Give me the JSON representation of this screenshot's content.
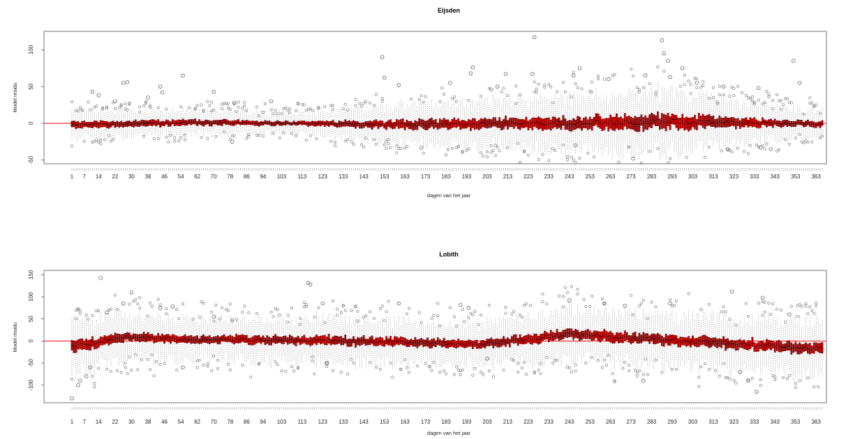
{
  "chart_data": [
    {
      "type": "box",
      "title": "Eijsden",
      "xlabel": "dagen van het jaar",
      "ylabel": "Model residu",
      "xlim": [
        1,
        366
      ],
      "ylim": [
        -55,
        125
      ],
      "yticks": [
        -50,
        0,
        50,
        100
      ],
      "xticks": [
        1,
        7,
        14,
        22,
        30,
        38,
        46,
        54,
        62,
        70,
        78,
        86,
        94,
        103,
        113,
        123,
        133,
        143,
        153,
        163,
        173,
        183,
        193,
        203,
        213,
        223,
        233,
        243,
        253,
        263,
        273,
        283,
        293,
        303,
        313,
        323,
        333,
        343,
        353,
        363
      ],
      "reference_line": {
        "y": 0,
        "color": "#ff0000"
      },
      "box_fill": "#cc0000",
      "spread_profile": [
        {
          "day": 1,
          "iqr": 8,
          "whisker": 15,
          "median": -2
        },
        {
          "day": 60,
          "iqr": 7,
          "whisker": 14,
          "median": 1
        },
        {
          "day": 110,
          "iqr": 5,
          "whisker": 12,
          "median": 0
        },
        {
          "day": 160,
          "iqr": 10,
          "whisker": 22,
          "median": -2
        },
        {
          "day": 230,
          "iqr": 14,
          "whisker": 30,
          "median": 0
        },
        {
          "day": 290,
          "iqr": 18,
          "whisker": 35,
          "median": 2
        },
        {
          "day": 340,
          "iqr": 9,
          "whisker": 20,
          "median": 0
        },
        {
          "day": 366,
          "iqr": 7,
          "whisker": 15,
          "median": -1
        }
      ],
      "outliers": [
        {
          "day": 11,
          "y": 43
        },
        {
          "day": 14,
          "y": 38
        },
        {
          "day": 22,
          "y": 30
        },
        {
          "day": 26,
          "y": 55
        },
        {
          "day": 28,
          "y": 56
        },
        {
          "day": 38,
          "y": 35
        },
        {
          "day": 44,
          "y": 50
        },
        {
          "day": 45,
          "y": 42
        },
        {
          "day": 55,
          "y": 65
        },
        {
          "day": 70,
          "y": 43
        },
        {
          "day": 80,
          "y": 28
        },
        {
          "day": 98,
          "y": 30
        },
        {
          "day": 152,
          "y": 90
        },
        {
          "day": 153,
          "y": 62
        },
        {
          "day": 160,
          "y": 52
        },
        {
          "day": 185,
          "y": 55
        },
        {
          "day": 195,
          "y": 68
        },
        {
          "day": 196,
          "y": 76
        },
        {
          "day": 205,
          "y": 46
        },
        {
          "day": 208,
          "y": 50
        },
        {
          "day": 212,
          "y": 67
        },
        {
          "day": 226,
          "y": 117
        },
        {
          "day": 225,
          "y": 67
        },
        {
          "day": 245,
          "y": 65
        },
        {
          "day": 248,
          "y": 75
        },
        {
          "day": 262,
          "y": 60
        },
        {
          "day": 280,
          "y": 65
        },
        {
          "day": 288,
          "y": 113
        },
        {
          "day": 289,
          "y": 95
        },
        {
          "day": 291,
          "y": 85
        },
        {
          "day": 292,
          "y": 63
        },
        {
          "day": 298,
          "y": 75
        },
        {
          "day": 305,
          "y": 55
        },
        {
          "day": 318,
          "y": 50
        },
        {
          "day": 335,
          "y": 48
        },
        {
          "day": 352,
          "y": 85
        },
        {
          "day": 355,
          "y": 55
        },
        {
          "day": 274,
          "y": -48
        },
        {
          "day": 171,
          "y": -33
        },
        {
          "day": 320,
          "y": -35
        },
        {
          "day": 336,
          "y": -33
        },
        {
          "day": 341,
          "y": -35
        },
        {
          "day": 246,
          "y": -30
        },
        {
          "day": 79,
          "y": -25
        }
      ]
    },
    {
      "type": "box",
      "title": "Lobith",
      "xlabel": "dagen van het jaar",
      "ylabel": "Model residu",
      "xlim": [
        1,
        366
      ],
      "ylim": [
        -140,
        160
      ],
      "yticks": [
        -100,
        -50,
        0,
        50,
        100,
        150
      ],
      "xticks": [
        1,
        7,
        14,
        22,
        30,
        38,
        46,
        54,
        62,
        70,
        78,
        86,
        94,
        103,
        113,
        123,
        133,
        143,
        153,
        163,
        173,
        183,
        193,
        203,
        213,
        223,
        233,
        243,
        253,
        263,
        273,
        283,
        293,
        303,
        313,
        323,
        333,
        343,
        353,
        363
      ],
      "reference_line": {
        "y": 0,
        "color": "#ff0000"
      },
      "box_fill": "#cc0000",
      "spread_profile": [
        {
          "day": 1,
          "iqr": 25,
          "whisker": 55,
          "median": -12
        },
        {
          "day": 10,
          "iqr": 20,
          "whisker": 50,
          "median": -5
        },
        {
          "day": 25,
          "iqr": 18,
          "whisker": 48,
          "median": 10
        },
        {
          "day": 60,
          "iqr": 15,
          "whisker": 40,
          "median": 3
        },
        {
          "day": 120,
          "iqr": 18,
          "whisker": 45,
          "median": 2
        },
        {
          "day": 200,
          "iqr": 16,
          "whisker": 42,
          "median": -8
        },
        {
          "day": 243,
          "iqr": 20,
          "whisker": 50,
          "median": 15
        },
        {
          "day": 300,
          "iqr": 20,
          "whisker": 50,
          "median": 0
        },
        {
          "day": 366,
          "iqr": 22,
          "whisker": 55,
          "median": -18
        }
      ],
      "outliers": [
        {
          "day": 1,
          "y": -130
        },
        {
          "day": 4,
          "y": -100
        },
        {
          "day": 5,
          "y": -90
        },
        {
          "day": 8,
          "y": -80
        },
        {
          "day": 10,
          "y": -60
        },
        {
          "day": 15,
          "y": 143
        },
        {
          "day": 18,
          "y": 65
        },
        {
          "day": 26,
          "y": 85
        },
        {
          "day": 30,
          "y": 110
        },
        {
          "day": 44,
          "y": 75
        },
        {
          "day": 50,
          "y": 78
        },
        {
          "day": 70,
          "y": 55
        },
        {
          "day": 116,
          "y": 132
        },
        {
          "day": 117,
          "y": 128
        },
        {
          "day": 123,
          "y": 85
        },
        {
          "day": 160,
          "y": 85
        },
        {
          "day": 190,
          "y": 82
        },
        {
          "day": 194,
          "y": 75
        },
        {
          "day": 243,
          "y": 92
        },
        {
          "day": 260,
          "y": 85
        },
        {
          "day": 270,
          "y": 80
        },
        {
          "day": 279,
          "y": -90
        },
        {
          "day": 292,
          "y": 85
        },
        {
          "day": 322,
          "y": 112
        },
        {
          "day": 337,
          "y": 98
        },
        {
          "day": 334,
          "y": -115
        },
        {
          "day": 330,
          "y": -90
        },
        {
          "day": 326,
          "y": -70
        },
        {
          "day": 125,
          "y": -50
        },
        {
          "day": 55,
          "y": -60
        },
        {
          "day": 350,
          "y": 60
        },
        {
          "day": 203,
          "y": -40
        }
      ]
    }
  ]
}
